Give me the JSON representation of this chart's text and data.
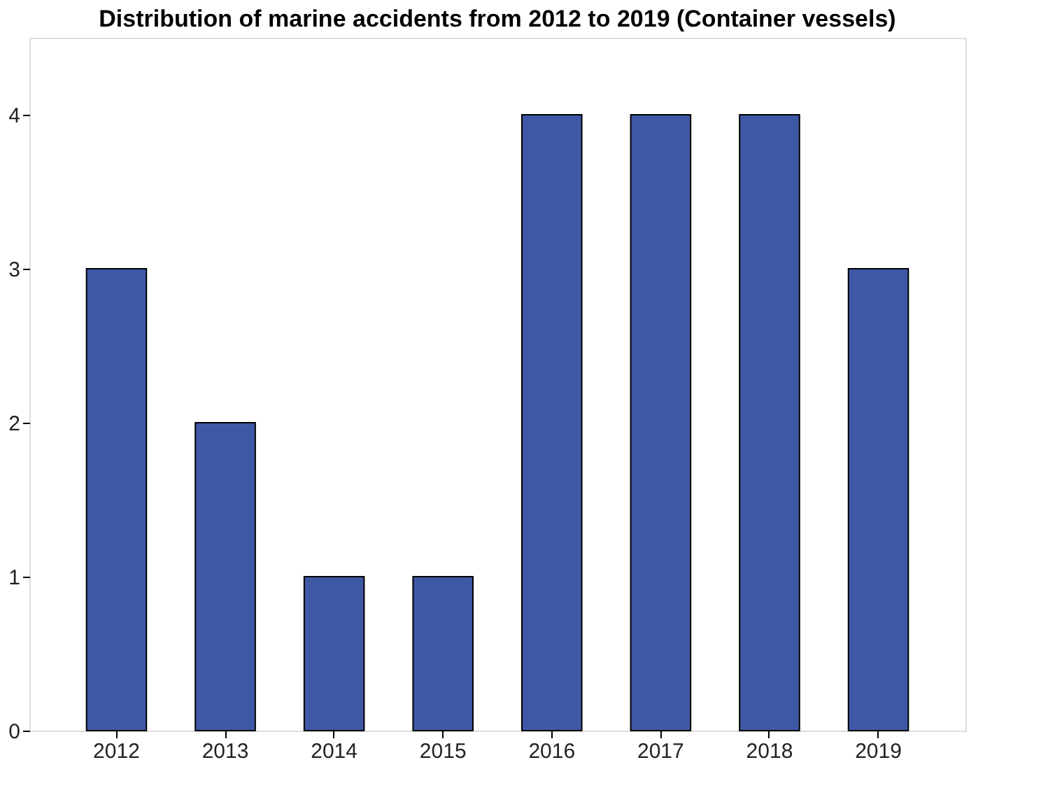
{
  "chart_data": {
    "type": "bar",
    "title": "Distribution of marine accidents from 2012 to 2019 (Container vessels)",
    "categories": [
      "2012",
      "2013",
      "2014",
      "2015",
      "2016",
      "2017",
      "2018",
      "2019"
    ],
    "values": [
      3,
      2,
      1,
      1,
      4,
      4,
      4,
      3
    ],
    "color": "#3f58a6",
    "ylim": [
      0,
      4.5
    ],
    "yticks": [
      0,
      1,
      2,
      3,
      4
    ],
    "grid": false
  }
}
